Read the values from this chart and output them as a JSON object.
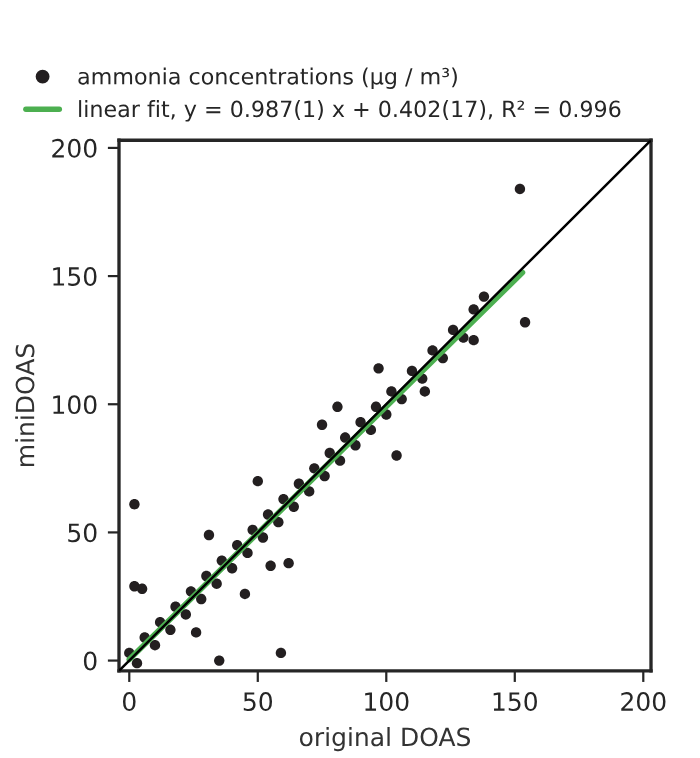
{
  "chart_data": {
    "type": "scatter",
    "xlabel": "original DOAS",
    "ylabel": "miniDOAS",
    "xlim": [
      -4,
      203
    ],
    "ylim": [
      -4,
      203
    ],
    "xticks": [
      0,
      50,
      100,
      150,
      200
    ],
    "yticks": [
      0,
      50,
      100,
      150,
      200
    ],
    "grid": false,
    "legend": "top",
    "series": [
      {
        "name": "ammonia concentrations (μg / m³)",
        "marker": "circle",
        "color": "#231f20",
        "x": [
          0,
          6,
          12,
          18,
          24,
          30,
          36,
          42,
          48,
          54,
          60,
          66,
          72,
          78,
          84,
          90,
          96,
          102,
          110,
          118,
          126,
          134,
          3,
          10,
          16,
          22,
          28,
          34,
          40,
          46,
          52,
          58,
          64,
          70,
          76,
          82,
          88,
          94,
          100,
          106,
          114,
          122,
          130,
          2,
          2,
          5,
          35,
          59,
          152,
          154,
          138,
          104,
          97,
          81,
          62,
          55,
          31,
          50,
          115,
          26,
          75,
          45,
          134
        ],
        "values": [
          3,
          9,
          15,
          21,
          27,
          33,
          39,
          45,
          51,
          57,
          63,
          69,
          75,
          81,
          87,
          93,
          99,
          105,
          113,
          121,
          129,
          137,
          -1,
          6,
          12,
          18,
          24,
          30,
          36,
          42,
          48,
          54,
          60,
          66,
          72,
          78,
          84,
          90,
          96,
          102,
          110,
          118,
          126,
          61,
          29,
          28,
          0,
          3,
          184,
          132,
          142,
          80,
          114,
          99,
          38,
          37,
          49,
          70,
          105,
          11,
          92,
          26,
          125
        ]
      },
      {
        "type": "line",
        "color": "#000000",
        "x": [
          -4,
          203
        ],
        "values": [
          -4,
          203
        ]
      },
      {
        "name": "linear fit, y = 0.987(1) x + 0.402(17), R² = 0.996",
        "type": "line",
        "color": "#4caf50",
        "x": [
          0,
          153
        ],
        "values": [
          0.4,
          151.4
        ]
      }
    ]
  }
}
